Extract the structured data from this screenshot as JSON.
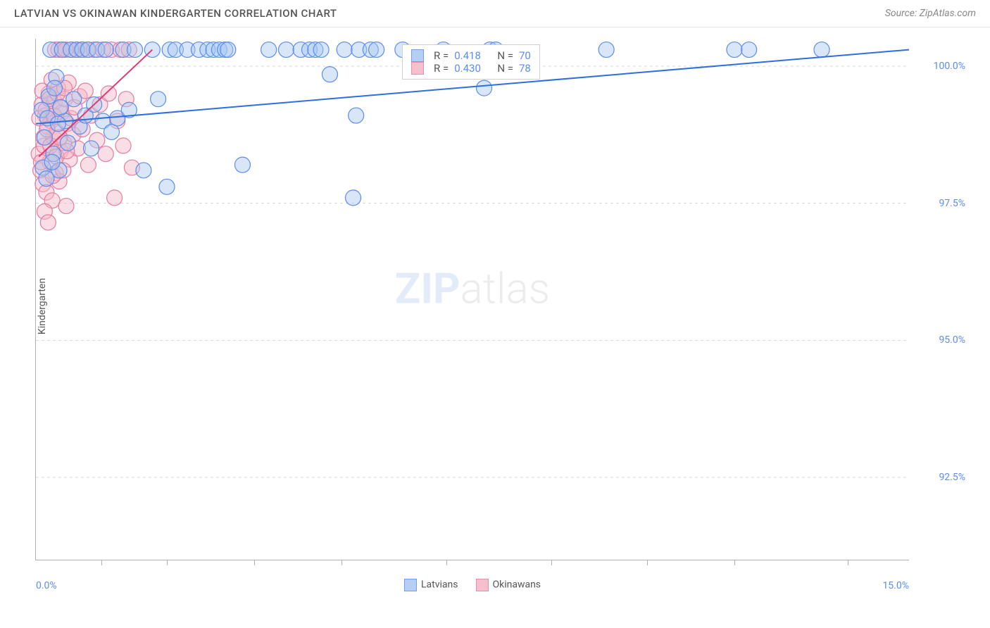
{
  "title": "LATVIAN VS OKINAWAN KINDERGARTEN CORRELATION CHART",
  "source": "Source: ZipAtlas.com",
  "watermark_zip": "ZIP",
  "watermark_atlas": "atlas",
  "chart": {
    "type": "scatter",
    "y_axis_title": "Kindergarten",
    "xlim": [
      0.0,
      15.0
    ],
    "ylim": [
      91.0,
      100.5
    ],
    "x_tick_positions": [
      0.075,
      0.15,
      0.25,
      0.35,
      0.47,
      0.59,
      0.7,
      0.8,
      0.93
    ],
    "x_label_min": "0.0%",
    "x_label_max": "15.0%",
    "y_ticks": [
      {
        "v": 100.0,
        "label": "100.0%"
      },
      {
        "v": 97.5,
        "label": "97.5%"
      },
      {
        "v": 95.0,
        "label": "95.0%"
      },
      {
        "v": 92.5,
        "label": "92.5%"
      }
    ],
    "grid_color": "#d8d8d8",
    "background_color": "#ffffff",
    "series": {
      "latvians": {
        "label": "Latvians",
        "fill": "#a9c7f0",
        "stroke": "#5b8def",
        "marker_radius": 11,
        "fill_opacity": 0.45,
        "trend": {
          "x1": 0.0,
          "y1": 98.95,
          "x2": 15.0,
          "y2": 100.3,
          "stroke": "#2e6fe0",
          "width": 2
        },
        "stats": {
          "R": "0.418",
          "N": "70"
        },
        "points": [
          [
            0.1,
            99.2
          ],
          [
            0.15,
            98.7
          ],
          [
            0.2,
            99.05
          ],
          [
            0.25,
            100.3
          ],
          [
            0.3,
            98.4
          ],
          [
            0.35,
            99.8
          ],
          [
            0.4,
            98.1
          ],
          [
            0.45,
            100.3
          ],
          [
            0.5,
            99.0
          ],
          [
            0.55,
            98.6
          ],
          [
            0.6,
            100.3
          ],
          [
            0.65,
            99.4
          ],
          [
            0.7,
            100.3
          ],
          [
            0.75,
            98.9
          ],
          [
            0.8,
            100.3
          ],
          [
            0.85,
            99.1
          ],
          [
            0.9,
            100.3
          ],
          [
            0.95,
            98.5
          ],
          [
            1.0,
            99.3
          ],
          [
            1.05,
            100.3
          ],
          [
            1.15,
            99.0
          ],
          [
            1.2,
            100.3
          ],
          [
            1.3,
            98.8
          ],
          [
            1.4,
            99.05
          ],
          [
            1.5,
            100.3
          ],
          [
            1.6,
            99.2
          ],
          [
            1.7,
            100.3
          ],
          [
            1.85,
            98.1
          ],
          [
            2.0,
            100.3
          ],
          [
            2.1,
            99.4
          ],
          [
            2.25,
            97.8
          ],
          [
            2.3,
            100.3
          ],
          [
            2.4,
            100.3
          ],
          [
            2.6,
            100.3
          ],
          [
            2.8,
            100.3
          ],
          [
            2.95,
            100.3
          ],
          [
            3.05,
            100.3
          ],
          [
            3.15,
            100.3
          ],
          [
            3.25,
            100.3
          ],
          [
            3.3,
            100.3
          ],
          [
            3.55,
            98.2
          ],
          [
            4.0,
            100.3
          ],
          [
            4.3,
            100.3
          ],
          [
            4.55,
            100.3
          ],
          [
            4.7,
            100.3
          ],
          [
            4.8,
            100.3
          ],
          [
            4.9,
            100.3
          ],
          [
            5.05,
            99.85
          ],
          [
            5.3,
            100.3
          ],
          [
            5.5,
            99.1
          ],
          [
            5.55,
            100.3
          ],
          [
            5.75,
            100.3
          ],
          [
            5.85,
            100.3
          ],
          [
            5.45,
            97.6
          ],
          [
            6.3,
            100.3
          ],
          [
            7.0,
            100.3
          ],
          [
            7.7,
            99.6
          ],
          [
            7.8,
            100.3
          ],
          [
            7.9,
            100.3
          ],
          [
            9.8,
            100.3
          ],
          [
            12.0,
            100.3
          ],
          [
            12.25,
            100.3
          ],
          [
            13.5,
            100.3
          ],
          [
            0.12,
            98.15
          ],
          [
            0.18,
            97.95
          ],
          [
            0.22,
            99.45
          ],
          [
            0.28,
            98.25
          ],
          [
            0.32,
            99.6
          ],
          [
            0.38,
            98.95
          ],
          [
            0.42,
            99.25
          ]
        ]
      },
      "okinawans": {
        "label": "Okinawans",
        "fill": "#f4b6c6",
        "stroke": "#e77ba0",
        "marker_radius": 11,
        "fill_opacity": 0.45,
        "trend": {
          "x1": 0.05,
          "y1": 98.35,
          "x2": 2.0,
          "y2": 100.3,
          "stroke": "#e03a72",
          "width": 2
        },
        "stats": {
          "R": "0.430",
          "N": "78"
        },
        "points": [
          [
            0.05,
            98.4
          ],
          [
            0.08,
            98.1
          ],
          [
            0.1,
            99.3
          ],
          [
            0.12,
            97.85
          ],
          [
            0.14,
            98.55
          ],
          [
            0.16,
            99.1
          ],
          [
            0.18,
            97.7
          ],
          [
            0.2,
            98.9
          ],
          [
            0.22,
            99.5
          ],
          [
            0.24,
            98.25
          ],
          [
            0.26,
            99.0
          ],
          [
            0.28,
            97.55
          ],
          [
            0.3,
            98.7
          ],
          [
            0.32,
            99.35
          ],
          [
            0.34,
            98.05
          ],
          [
            0.36,
            98.8
          ],
          [
            0.38,
            99.6
          ],
          [
            0.4,
            97.9
          ],
          [
            0.42,
            98.45
          ],
          [
            0.44,
            99.15
          ],
          [
            0.46,
            100.3
          ],
          [
            0.48,
            98.6
          ],
          [
            0.5,
            99.4
          ],
          [
            0.52,
            97.45
          ],
          [
            0.54,
            98.95
          ],
          [
            0.56,
            99.7
          ],
          [
            0.58,
            98.3
          ],
          [
            0.6,
            99.05
          ],
          [
            0.62,
            100.3
          ],
          [
            0.64,
            98.75
          ],
          [
            0.66,
            99.25
          ],
          [
            0.7,
            100.3
          ],
          [
            0.72,
            98.5
          ],
          [
            0.75,
            99.45
          ],
          [
            0.78,
            100.3
          ],
          [
            0.8,
            98.85
          ],
          [
            0.85,
            99.55
          ],
          [
            0.88,
            100.3
          ],
          [
            0.9,
            98.2
          ],
          [
            0.95,
            99.1
          ],
          [
            1.0,
            100.3
          ],
          [
            1.05,
            98.65
          ],
          [
            1.1,
            99.3
          ],
          [
            1.15,
            100.3
          ],
          [
            1.2,
            98.4
          ],
          [
            1.25,
            99.5
          ],
          [
            1.3,
            100.3
          ],
          [
            1.35,
            97.6
          ],
          [
            1.4,
            99.0
          ],
          [
            1.45,
            100.3
          ],
          [
            1.5,
            98.55
          ],
          [
            1.55,
            99.4
          ],
          [
            1.6,
            100.3
          ],
          [
            1.65,
            98.15
          ],
          [
            0.06,
            99.05
          ],
          [
            0.09,
            98.25
          ],
          [
            0.11,
            99.55
          ],
          [
            0.13,
            98.7
          ],
          [
            0.15,
            97.35
          ],
          [
            0.17,
            99.2
          ],
          [
            0.19,
            98.85
          ],
          [
            0.21,
            97.15
          ],
          [
            0.23,
            99.4
          ],
          [
            0.25,
            98.55
          ],
          [
            0.27,
            99.75
          ],
          [
            0.29,
            98.0
          ],
          [
            0.31,
            99.1
          ],
          [
            0.33,
            100.3
          ],
          [
            0.35,
            98.35
          ],
          [
            0.37,
            99.5
          ],
          [
            0.39,
            100.3
          ],
          [
            0.41,
            98.7
          ],
          [
            0.43,
            99.25
          ],
          [
            0.45,
            100.3
          ],
          [
            0.47,
            98.1
          ],
          [
            0.49,
            99.6
          ],
          [
            0.51,
            100.3
          ],
          [
            0.53,
            98.45
          ]
        ]
      }
    },
    "info_box": {
      "R_label": "R =",
      "N_label": "N ="
    }
  },
  "legend": {
    "latvians": "Latvians",
    "okinawans": "Okinawans"
  }
}
